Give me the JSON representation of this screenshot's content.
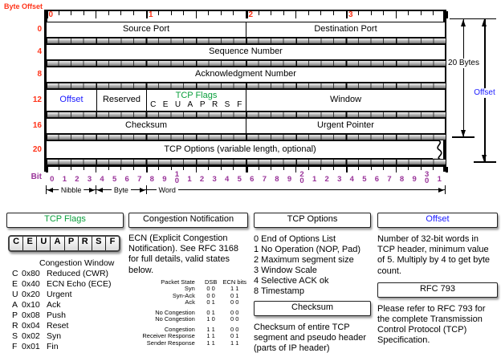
{
  "colors": {
    "red": "#ff3319",
    "purple": "#993399",
    "green": "#0a9f3c",
    "blue": "#1a1aff"
  },
  "diagram": {
    "byte_offset_label": "Byte Offset",
    "bit_label": "Bit",
    "byte_numbers": [
      "0",
      "1",
      "2",
      "3"
    ],
    "row_offsets": [
      "0",
      "4",
      "8",
      "12",
      "16",
      "20"
    ],
    "rows": [
      {
        "fields": [
          {
            "label": "Source Port",
            "bits": 16
          },
          {
            "label": "Destination Port",
            "bits": 16
          }
        ]
      },
      {
        "fields": [
          {
            "label": "Sequence Number",
            "bits": 32
          }
        ]
      },
      {
        "fields": [
          {
            "label": "Acknowledgment Number",
            "bits": 32
          }
        ]
      },
      {
        "fields": [
          {
            "label": "Offset",
            "bits": 4,
            "color": "blue"
          },
          {
            "label": "Reserved",
            "bits": 4
          },
          {
            "label": "TCP Flags",
            "bits": 8,
            "color": "green",
            "letters": [
              "C",
              "E",
              "U",
              "A",
              "P",
              "R",
              "S",
              "F"
            ]
          },
          {
            "label": "Window",
            "bits": 16
          }
        ]
      },
      {
        "fields": [
          {
            "label": "Checksum",
            "bits": 16
          },
          {
            "label": "Urgent Pointer",
            "bits": 16
          }
        ]
      },
      {
        "fields": [
          {
            "label": "TCP Options (variable length, optional)",
            "bits": 32
          }
        ],
        "torn": true
      }
    ],
    "bit_numbers": [
      "0",
      "1",
      "2",
      "3",
      "4",
      "5",
      "6",
      "7",
      "8",
      "9",
      "10",
      "1",
      "2",
      "3",
      "4",
      "5",
      "6",
      "7",
      "8",
      "9",
      "20",
      "1",
      "2",
      "3",
      "4",
      "5",
      "6",
      "7",
      "8",
      "9",
      "30",
      "1"
    ],
    "measures": [
      {
        "label": "Nibble",
        "from": 0,
        "to": 4,
        "arrows": "both"
      },
      {
        "label": "Byte",
        "from": 4,
        "to": 8,
        "arrows": "both"
      },
      {
        "label": "Word",
        "from": 8,
        "to": 32,
        "arrows": "right"
      }
    ],
    "side": {
      "bytes_label": "20 Bytes",
      "offset_label": "Offset"
    }
  },
  "legend": {
    "tcp_flags": {
      "title": "TCP Flags",
      "cells": [
        "C",
        "E",
        "U",
        "A",
        "P",
        "R",
        "S",
        "F"
      ],
      "intro": "Congestion Window",
      "items": [
        {
          "flag": "C",
          "hex": "0x80",
          "name": "Reduced (CWR)"
        },
        {
          "flag": "E",
          "hex": "0x40",
          "name": "ECN Echo (ECE)"
        },
        {
          "flag": "U",
          "hex": "0x20",
          "name": "Urgent"
        },
        {
          "flag": "A",
          "hex": "0x10",
          "name": "Ack"
        },
        {
          "flag": "P",
          "hex": "0x08",
          "name": "Push"
        },
        {
          "flag": "R",
          "hex": "0x04",
          "name": "Reset"
        },
        {
          "flag": "S",
          "hex": "0x02",
          "name": "Syn"
        },
        {
          "flag": "F",
          "hex": "0x01",
          "name": "Fin"
        }
      ]
    },
    "congestion": {
      "title": "Congestion Notification",
      "body": "ECN (Explicit Congestion Notification).  See RFC 3168 for full details, valid states below.",
      "table": {
        "headers": [
          "Packet State",
          "DSB",
          "ECN bits"
        ],
        "groups": [
          [
            [
              "Syn",
              "0 0",
              "1 1"
            ],
            [
              "Syn-Ack",
              "0 0",
              "0 1"
            ],
            [
              "Ack",
              "0 1",
              "0 0"
            ]
          ],
          [
            [
              "No Congestion",
              "0 1",
              "0 0"
            ],
            [
              "No Congestion",
              "1 0",
              "0 0"
            ]
          ],
          [
            [
              "Congestion",
              "1 1",
              "0 0"
            ],
            [
              "Receiver Response",
              "1 1",
              "0 1"
            ],
            [
              "Sender Response",
              "1 1",
              "1 1"
            ]
          ]
        ]
      }
    },
    "tcp_options": {
      "title": "TCP Options",
      "items": [
        "0 End of Options List",
        "1 No Operation (NOP, Pad)",
        "2 Maximum segment size",
        "3 Window Scale",
        "4 Selective ACK ok",
        "8 Timestamp"
      ]
    },
    "checksum": {
      "title": "Checksum",
      "body": "Checksum of entire TCP segment and pseudo header (parts of IP header)"
    },
    "offset": {
      "title": "Offset",
      "body": "Number of 32-bit words in TCP header, minimum value of 5.  Multiply by 4 to get byte count."
    },
    "rfc": {
      "title": "RFC 793",
      "body": "Please refer to RFC 793 for the complete Transmission Control Protocol (TCP) Specification."
    }
  }
}
